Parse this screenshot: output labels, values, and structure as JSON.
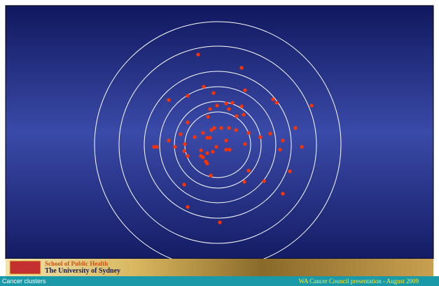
{
  "chart_data": {
    "type": "scatter",
    "color": "#ff3300",
    "x": [
      -28,
      34,
      -20,
      -43,
      -6,
      39,
      -70,
      79,
      84,
      134,
      21,
      34,
      37,
      -11,
      -1,
      16,
      12,
      -43,
      -14,
      27,
      -5,
      5,
      16,
      -21,
      -9,
      26,
      -53,
      -33,
      -15,
      -11,
      12,
      75,
      61,
      44,
      111,
      -70,
      -61,
      -47,
      -91,
      -87,
      -2,
      39,
      93,
      120,
      -24,
      -15,
      -7,
      12,
      17,
      89,
      -48,
      -43,
      -24,
      -21,
      -17,
      -15,
      44,
      103,
      -10,
      38,
      66,
      -48,
      93,
      -43,
      3
    ],
    "y": [
      129,
      110,
      83,
      70,
      74,
      78,
      64,
      65,
      60,
      56,
      60,
      55,
      43,
      51,
      56,
      51,
      59,
      32,
      40,
      41,
      24,
      24,
      24,
      17,
      21,
      21,
      15,
      11,
      10,
      10,
      6,
      16,
      11,
      17,
      24,
      6,
      -3,
      1,
      -3,
      -3,
      -3,
      1,
      6,
      -3,
      -8,
      -12,
      -10,
      -7,
      -7,
      -7,
      -9,
      -16,
      -16,
      -18,
      -24,
      -27,
      -37,
      -38,
      -44,
      -53,
      -52,
      -57,
      -70,
      -89,
      -111
    ],
    "xlim": [
      -176,
      176
    ],
    "ylim": [
      -176,
      176
    ]
  },
  "footer": {
    "logo_line1": "School of Public Health",
    "logo_line2": "The University of Sydney",
    "left": "Cancer clusters",
    "right": "WA Cancer Council presentation -  August 2009"
  }
}
